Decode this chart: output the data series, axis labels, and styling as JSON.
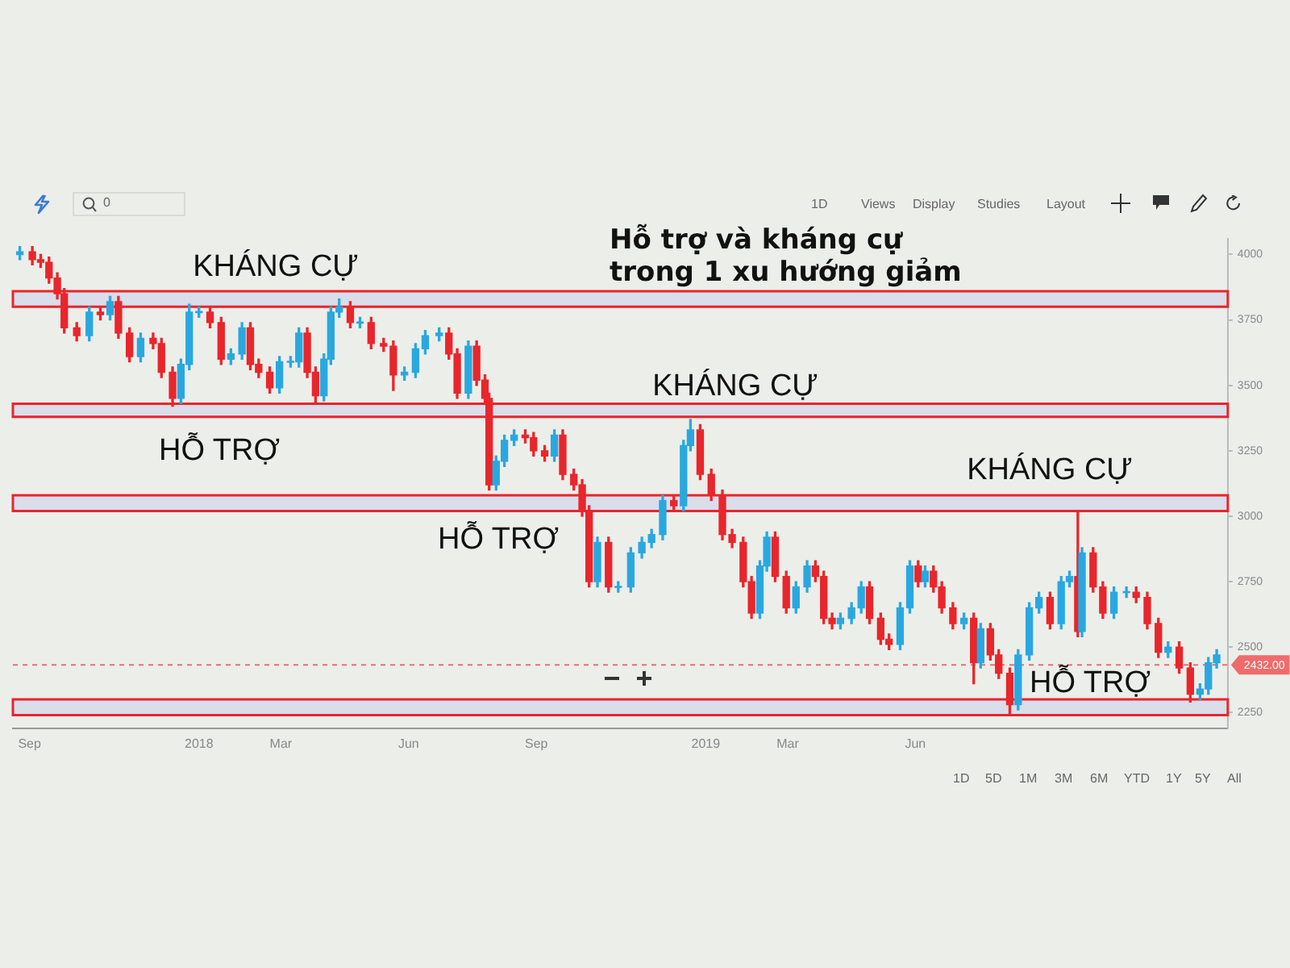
{
  "chart_data": {
    "type": "candlestick",
    "title": "Hỗ trợ và kháng cự trong 1 xu hướng giảm",
    "x": [
      "2017-08-25",
      "2017-09-03",
      "2017-09-09",
      "2017-09-15",
      "2017-09-21",
      "2017-09-26",
      "2017-10-05",
      "2017-10-14",
      "2017-10-22",
      "2017-10-29",
      "2017-11-04",
      "2017-11-12",
      "2017-11-20",
      "2017-11-29",
      "2017-12-05",
      "2017-12-13",
      "2017-12-19",
      "2017-12-25",
      "2018-01-01",
      "2018-01-09",
      "2018-01-17",
      "2018-01-24",
      "2018-02-01",
      "2018-02-07",
      "2018-02-13",
      "2018-02-21",
      "2018-02-28",
      "2018-03-08",
      "2018-03-14",
      "2018-03-20",
      "2018-03-26",
      "2018-04-01",
      "2018-04-06",
      "2018-04-12",
      "2018-04-20",
      "2018-04-27",
      "2018-05-05",
      "2018-05-14",
      "2018-05-21",
      "2018-05-29",
      "2018-06-06",
      "2018-06-13",
      "2018-06-23",
      "2018-06-30",
      "2018-07-06",
      "2018-07-14",
      "2018-07-20",
      "2018-07-26",
      "2018-07-29",
      "2018-08-03",
      "2018-08-09",
      "2018-08-16",
      "2018-08-24",
      "2018-08-30",
      "2018-09-07",
      "2018-09-14",
      "2018-09-20",
      "2018-09-28",
      "2018-10-04",
      "2018-10-09",
      "2018-10-15",
      "2018-10-23",
      "2018-10-30",
      "2018-11-08",
      "2018-11-16",
      "2018-11-23",
      "2018-12-01",
      "2018-12-09",
      "2018-12-16",
      "2018-12-21",
      "2018-12-28",
      "2019-01-05",
      "2019-01-13",
      "2019-01-20",
      "2019-01-28",
      "2019-02-03",
      "2019-02-09",
      "2019-02-14",
      "2019-02-20",
      "2019-02-28",
      "2019-03-07",
      "2019-03-15",
      "2019-03-21",
      "2019-03-27",
      "2019-04-02",
      "2019-04-08",
      "2019-04-16",
      "2019-04-23",
      "2019-04-29",
      "2019-05-07",
      "2019-05-13",
      "2019-05-21",
      "2019-05-28",
      "2019-06-03",
      "2019-06-08",
      "2019-06-14",
      "2019-06-20",
      "2019-06-28",
      "2019-07-06",
      "2019-07-13",
      "2019-07-18",
      "2019-07-25",
      "2019-07-31",
      "2019-08-08",
      "2019-08-14",
      "2019-08-22",
      "2019-08-29",
      "2019-09-06",
      "2019-09-14",
      "2019-09-20",
      "2019-09-26",
      "2019-09-29",
      "2019-10-07",
      "2019-10-14",
      "2019-10-22",
      "2019-10-31",
      "2019-11-07",
      "2019-11-15",
      "2019-11-23",
      "2019-11-30",
      "2019-12-08",
      "2019-12-16",
      "2019-12-23",
      "2019-12-29",
      "2020-01-04"
    ],
    "ohlc": [
      [
        4000,
        4030,
        3980,
        4010
      ],
      [
        4010,
        4030,
        3960,
        3980
      ],
      [
        3980,
        4000,
        3950,
        3970
      ],
      [
        3970,
        3990,
        3890,
        3910
      ],
      [
        3910,
        3930,
        3830,
        3850
      ],
      [
        3850,
        3870,
        3700,
        3720
      ],
      [
        3720,
        3740,
        3670,
        3690
      ],
      [
        3690,
        3800,
        3670,
        3780
      ],
      [
        3780,
        3800,
        3750,
        3770
      ],
      [
        3770,
        3840,
        3750,
        3820
      ],
      [
        3820,
        3840,
        3680,
        3700
      ],
      [
        3700,
        3720,
        3590,
        3610
      ],
      [
        3610,
        3700,
        3590,
        3680
      ],
      [
        3680,
        3700,
        3640,
        3660
      ],
      [
        3660,
        3680,
        3530,
        3550
      ],
      [
        3550,
        3570,
        3420,
        3450
      ],
      [
        3450,
        3600,
        3430,
        3580
      ],
      [
        3580,
        3810,
        3560,
        3780
      ],
      [
        3780,
        3800,
        3760,
        3780
      ],
      [
        3780,
        3800,
        3720,
        3740
      ],
      [
        3740,
        3760,
        3580,
        3600
      ],
      [
        3600,
        3640,
        3580,
        3620
      ],
      [
        3620,
        3740,
        3600,
        3720
      ],
      [
        3720,
        3740,
        3560,
        3580
      ],
      [
        3580,
        3600,
        3530,
        3550
      ],
      [
        3550,
        3570,
        3470,
        3490
      ],
      [
        3490,
        3610,
        3470,
        3590
      ],
      [
        3590,
        3610,
        3570,
        3590
      ],
      [
        3590,
        3720,
        3570,
        3700
      ],
      [
        3700,
        3720,
        3530,
        3550
      ],
      [
        3550,
        3570,
        3430,
        3460
      ],
      [
        3460,
        3620,
        3440,
        3600
      ],
      [
        3600,
        3800,
        3580,
        3780
      ],
      [
        3780,
        3830,
        3760,
        3800
      ],
      [
        3800,
        3820,
        3720,
        3740
      ],
      [
        3740,
        3760,
        3720,
        3740
      ],
      [
        3740,
        3760,
        3640,
        3660
      ],
      [
        3660,
        3680,
        3630,
        3650
      ],
      [
        3650,
        3670,
        3480,
        3540
      ],
      [
        3540,
        3570,
        3520,
        3550
      ],
      [
        3550,
        3660,
        3530,
        3640
      ],
      [
        3640,
        3710,
        3620,
        3690
      ],
      [
        3690,
        3720,
        3670,
        3700
      ],
      [
        3700,
        3720,
        3600,
        3620
      ],
      [
        3620,
        3640,
        3450,
        3470
      ],
      [
        3470,
        3670,
        3450,
        3650
      ],
      [
        3650,
        3670,
        3500,
        3520
      ],
      [
        3520,
        3540,
        3430,
        3450
      ],
      [
        3450,
        3470,
        3100,
        3120
      ],
      [
        3120,
        3230,
        3100,
        3210
      ],
      [
        3210,
        3310,
        3190,
        3290
      ],
      [
        3290,
        3330,
        3270,
        3310
      ],
      [
        3310,
        3330,
        3280,
        3300
      ],
      [
        3300,
        3320,
        3230,
        3250
      ],
      [
        3250,
        3270,
        3210,
        3230
      ],
      [
        3230,
        3330,
        3210,
        3310
      ],
      [
        3310,
        3330,
        3140,
        3160
      ],
      [
        3160,
        3180,
        3100,
        3120
      ],
      [
        3120,
        3140,
        3000,
        3020
      ],
      [
        3020,
        3040,
        2730,
        2750
      ],
      [
        2750,
        2920,
        2730,
        2900
      ],
      [
        2900,
        2920,
        2710,
        2730
      ],
      [
        2730,
        2750,
        2710,
        2730
      ],
      [
        2730,
        2880,
        2710,
        2860
      ],
      [
        2860,
        2920,
        2840,
        2900
      ],
      [
        2900,
        2950,
        2880,
        2930
      ],
      [
        2930,
        3080,
        2910,
        3060
      ],
      [
        3060,
        3080,
        3020,
        3040
      ],
      [
        3040,
        3290,
        3020,
        3270
      ],
      [
        3270,
        3370,
        3250,
        3330
      ],
      [
        3330,
        3350,
        3140,
        3160
      ],
      [
        3160,
        3180,
        3060,
        3080
      ],
      [
        3080,
        3100,
        2910,
        2930
      ],
      [
        2930,
        2950,
        2880,
        2900
      ],
      [
        2900,
        2920,
        2730,
        2750
      ],
      [
        2750,
        2770,
        2610,
        2630
      ],
      [
        2630,
        2830,
        2610,
        2810
      ],
      [
        2810,
        2940,
        2790,
        2920
      ],
      [
        2920,
        2940,
        2750,
        2770
      ],
      [
        2770,
        2790,
        2630,
        2650
      ],
      [
        2650,
        2750,
        2630,
        2730
      ],
      [
        2730,
        2830,
        2710,
        2810
      ],
      [
        2810,
        2830,
        2750,
        2770
      ],
      [
        2770,
        2790,
        2590,
        2610
      ],
      [
        2610,
        2630,
        2570,
        2590
      ],
      [
        2590,
        2630,
        2570,
        2610
      ],
      [
        2610,
        2670,
        2590,
        2650
      ],
      [
        2650,
        2750,
        2630,
        2730
      ],
      [
        2730,
        2750,
        2590,
        2610
      ],
      [
        2610,
        2630,
        2510,
        2530
      ],
      [
        2530,
        2550,
        2490,
        2510
      ],
      [
        2510,
        2670,
        2490,
        2650
      ],
      [
        2650,
        2830,
        2630,
        2810
      ],
      [
        2810,
        2830,
        2730,
        2750
      ],
      [
        2750,
        2810,
        2730,
        2790
      ],
      [
        2790,
        2810,
        2710,
        2730
      ],
      [
        2730,
        2750,
        2630,
        2650
      ],
      [
        2650,
        2670,
        2570,
        2590
      ],
      [
        2590,
        2630,
        2570,
        2610
      ],
      [
        2610,
        2630,
        2360,
        2440
      ],
      [
        2440,
        2590,
        2420,
        2570
      ],
      [
        2570,
        2590,
        2450,
        2470
      ],
      [
        2470,
        2490,
        2380,
        2400
      ],
      [
        2400,
        2420,
        2240,
        2280
      ],
      [
        2280,
        2490,
        2260,
        2470
      ],
      [
        2470,
        2670,
        2450,
        2650
      ],
      [
        2650,
        2710,
        2630,
        2690
      ],
      [
        2690,
        2710,
        2570,
        2590
      ],
      [
        2590,
        2770,
        2570,
        2750
      ],
      [
        2750,
        2790,
        2730,
        2770
      ],
      [
        2770,
        3020,
        2540,
        2560
      ],
      [
        2560,
        2880,
        2540,
        2860
      ],
      [
        2860,
        2880,
        2710,
        2730
      ],
      [
        2730,
        2750,
        2610,
        2630
      ],
      [
        2630,
        2730,
        2610,
        2710
      ],
      [
        2710,
        2730,
        2690,
        2710
      ],
      [
        2710,
        2730,
        2670,
        2690
      ],
      [
        2690,
        2710,
        2570,
        2590
      ],
      [
        2590,
        2610,
        2460,
        2480
      ],
      [
        2480,
        2520,
        2460,
        2500
      ],
      [
        2500,
        2520,
        2400,
        2420
      ],
      [
        2420,
        2440,
        2290,
        2320
      ],
      [
        2320,
        2360,
        2300,
        2340
      ],
      [
        2340,
        2460,
        2320,
        2440
      ],
      [
        2440,
        2490,
        2420,
        2470
      ]
    ],
    "colors": [
      "#29a8e0",
      "#e8262b",
      "#e8262b",
      "#e8262b",
      "#e8262b",
      "#e8262b",
      "#e8262b",
      "#29a8e0",
      "#e8262b",
      "#29a8e0",
      "#e8262b",
      "#e8262b",
      "#29a8e0",
      "#e8262b",
      "#e8262b",
      "#e8262b",
      "#29a8e0",
      "#29a8e0",
      "#29a8e0",
      "#e8262b",
      "#e8262b",
      "#29a8e0",
      "#29a8e0",
      "#e8262b",
      "#e8262b",
      "#e8262b",
      "#29a8e0",
      "#29a8e0",
      "#29a8e0",
      "#e8262b",
      "#e8262b",
      "#29a8e0",
      "#29a8e0",
      "#29a8e0",
      "#e8262b",
      "#29a8e0",
      "#e8262b",
      "#e8262b",
      "#e8262b",
      "#29a8e0",
      "#29a8e0",
      "#29a8e0",
      "#29a8e0",
      "#e8262b",
      "#e8262b",
      "#29a8e0",
      "#e8262b",
      "#e8262b",
      "#e8262b",
      "#29a8e0",
      "#29a8e0",
      "#29a8e0",
      "#e8262b",
      "#e8262b",
      "#e8262b",
      "#29a8e0",
      "#e8262b",
      "#e8262b",
      "#e8262b",
      "#e8262b",
      "#29a8e0",
      "#e8262b",
      "#29a8e0",
      "#29a8e0",
      "#29a8e0",
      "#29a8e0",
      "#29a8e0",
      "#e8262b",
      "#29a8e0",
      "#29a8e0",
      "#e8262b",
      "#e8262b",
      "#e8262b",
      "#e8262b",
      "#e8262b",
      "#e8262b",
      "#29a8e0",
      "#29a8e0",
      "#e8262b",
      "#e8262b",
      "#29a8e0",
      "#29a8e0",
      "#e8262b",
      "#e8262b",
      "#e8262b",
      "#29a8e0",
      "#29a8e0",
      "#29a8e0",
      "#e8262b",
      "#e8262b",
      "#e8262b",
      "#29a8e0",
      "#29a8e0",
      "#e8262b",
      "#29a8e0",
      "#e8262b",
      "#e8262b",
      "#e8262b",
      "#29a8e0",
      "#e8262b",
      "#29a8e0",
      "#e8262b",
      "#e8262b",
      "#e8262b",
      "#29a8e0",
      "#29a8e0",
      "#29a8e0",
      "#e8262b",
      "#29a8e0",
      "#29a8e0",
      "#e8262b",
      "#29a8e0",
      "#e8262b",
      "#e8262b",
      "#29a8e0",
      "#29a8e0",
      "#e8262b",
      "#e8262b",
      "#e8262b",
      "#29a8e0",
      "#e8262b",
      "#e8262b",
      "#29a8e0",
      "#29a8e0",
      "#29a8e0"
    ],
    "xlim": [
      "2017-08-20",
      "2020-01-12"
    ],
    "xticks": [
      {
        "value": "2017-09-01",
        "label": "Sep"
      },
      {
        "value": "2018-01-01",
        "label": "2018"
      },
      {
        "value": "2018-03-01",
        "label": "Mar"
      },
      {
        "value": "2018-06-01",
        "label": "Jun"
      },
      {
        "value": "2018-09-01",
        "label": "Sep"
      },
      {
        "value": "2019-01-01",
        "label": "2019"
      },
      {
        "value": "2019-03-01",
        "label": "Mar"
      },
      {
        "value": "2019-06-01",
        "label": "Jun"
      }
    ],
    "ylim": [
      2190,
      4060
    ],
    "yticks": [
      2250,
      2500,
      2750,
      3000,
      3250,
      3500,
      3750,
      4000
    ],
    "bands": [
      {
        "axis": "y",
        "from": 3800,
        "to": 3860,
        "color": "#d6d8ea"
      },
      {
        "axis": "y",
        "from": 3380,
        "to": 3430,
        "color": "#d6d8ea"
      },
      {
        "axis": "y",
        "from": 3020,
        "to": 3080,
        "color": "#d6d8ea"
      },
      {
        "axis": "y",
        "from": 2240,
        "to": 2300,
        "color": "#d6d8ea"
      }
    ],
    "ref_lines": [
      {
        "axis": "y",
        "value": 2432,
        "label": "2432.00",
        "color": "#f06b6b",
        "line_style": "dashed"
      }
    ],
    "annotations": [
      "KHÁNG CỰ",
      "HỖ TRỢ",
      "KHÁNG CỰ",
      "HỖ TRỢ",
      "KHÁNG CỰ",
      "HỖ TRỢ",
      "0",
      "1D",
      "Views",
      "Display",
      "Studies",
      "Layout",
      "1D",
      "5D",
      "1M",
      "3M",
      "6M",
      "YTD",
      "1Y",
      "5Y",
      "All"
    ],
    "grid": false,
    "legend": false
  }
}
